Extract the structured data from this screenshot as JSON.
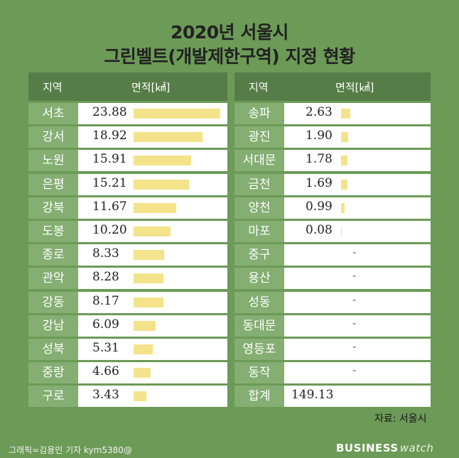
{
  "title_line1": "2020년 서울시",
  "title_line2": "그린벨트(개발제한구역) 지정 현황",
  "header_region": "지역",
  "header_area": "면적[㎢]",
  "source": "자료: 서울시",
  "credit": "그래픽=김용민 기자 kym5380@",
  "brand_business": "BUSINESS",
  "brand_watch": "watch",
  "dash": "-",
  "total_label": "합계",
  "total_value": "149.13",
  "chart_data": {
    "type": "table",
    "title": "2020년 서울시 그린벨트(개발제한구역) 지정 현황",
    "unit": "㎢",
    "max_value": 23.88,
    "rows": [
      {
        "region": "서초",
        "value": 23.88,
        "display": "23.88"
      },
      {
        "region": "강서",
        "value": 18.92,
        "display": "18.92"
      },
      {
        "region": "노원",
        "value": 15.91,
        "display": "15.91"
      },
      {
        "region": "은평",
        "value": 15.21,
        "display": "15.21"
      },
      {
        "region": "강북",
        "value": 11.67,
        "display": "11.67"
      },
      {
        "region": "도봉",
        "value": 10.2,
        "display": "10.20"
      },
      {
        "region": "종로",
        "value": 8.33,
        "display": "8.33"
      },
      {
        "region": "관악",
        "value": 8.28,
        "display": "8.28"
      },
      {
        "region": "강동",
        "value": 8.17,
        "display": "8.17"
      },
      {
        "region": "강남",
        "value": 6.09,
        "display": "6.09"
      },
      {
        "region": "성북",
        "value": 5.31,
        "display": "5.31"
      },
      {
        "region": "중랑",
        "value": 4.66,
        "display": "4.66"
      },
      {
        "region": "구로",
        "value": 3.43,
        "display": "3.43"
      },
      {
        "region": "송파",
        "value": 2.63,
        "display": "2.63"
      },
      {
        "region": "광진",
        "value": 1.9,
        "display": "1.90"
      },
      {
        "region": "서대문",
        "value": 1.78,
        "display": "1.78"
      },
      {
        "region": "금천",
        "value": 1.69,
        "display": "1.69"
      },
      {
        "region": "양천",
        "value": 0.99,
        "display": "0.99"
      },
      {
        "region": "마포",
        "value": 0.08,
        "display": "0.08"
      },
      {
        "region": "중구",
        "value": null,
        "display": "-"
      },
      {
        "region": "용산",
        "value": null,
        "display": "-"
      },
      {
        "region": "성동",
        "value": null,
        "display": "-"
      },
      {
        "region": "동대문",
        "value": null,
        "display": "-"
      },
      {
        "region": "영등포",
        "value": null,
        "display": "-"
      },
      {
        "region": "동작",
        "value": null,
        "display": "-"
      }
    ],
    "colors": {
      "bar": "#f4e38a",
      "header": "#567d47",
      "region_cell": "#84ae72",
      "background": "#6c9a57"
    }
  }
}
